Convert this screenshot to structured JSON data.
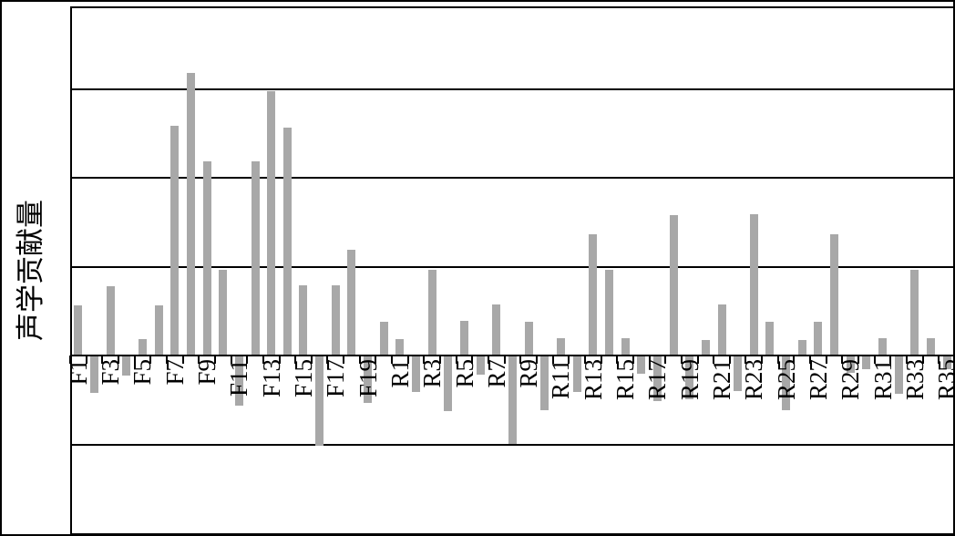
{
  "figure": {
    "background": "#ffffff",
    "outer_border_color": "#000000",
    "bar_color": "#a8a8a8",
    "axis_color": "#000000"
  },
  "chart_data": {
    "type": "bar",
    "title": "",
    "xlabel": "",
    "ylabel": "声学贡献量",
    "legend": "none",
    "grid": "horizontal",
    "ylim": [
      -2.02,
      3.93
    ],
    "gridline_values": [
      3,
      2,
      1,
      -1
    ],
    "zero_line": 0,
    "y_tick_labels": [],
    "categories": [
      "F1",
      "F2",
      "F3",
      "F4",
      "F5",
      "F6",
      "F7",
      "F8",
      "F9",
      "F10",
      "F11",
      "F12",
      "F13",
      "F14",
      "F15",
      "F16",
      "F17",
      "F18",
      "F19",
      "F20",
      "R1",
      "R2",
      "R3",
      "R4",
      "R5",
      "R6",
      "R7",
      "R8",
      "R9",
      "R10",
      "R11",
      "R12",
      "R13",
      "R14",
      "R15",
      "R16",
      "R17",
      "R18",
      "R19",
      "R20",
      "R21",
      "R22",
      "R23",
      "R24",
      "R25",
      "R26",
      "R27",
      "R28",
      "R29",
      "R30",
      "R31",
      "R32",
      "R33",
      "R34",
      "R35"
    ],
    "values": [
      0.57,
      -0.42,
      0.78,
      -0.22,
      0.19,
      0.57,
      2.59,
      3.18,
      2.19,
      0.97,
      -0.56,
      2.19,
      2.98,
      2.57,
      0.79,
      -1.01,
      0.79,
      1.19,
      -0.53,
      0.38,
      0.19,
      -0.41,
      0.97,
      -0.62,
      0.39,
      -0.21,
      0.58,
      -0.99,
      0.38,
      -0.61,
      0.2,
      -0.41,
      1.37,
      0.97,
      0.2,
      -0.2,
      -0.51,
      1.58,
      -0.49,
      0.18,
      0.58,
      -0.4,
      1.59,
      0.38,
      -0.61,
      0.18,
      0.38,
      1.37,
      -0.19,
      -0.15,
      0.2,
      -0.43,
      0.97,
      0.2,
      -0.15
    ],
    "x_tick_labels_shown": [
      "F1",
      "F3",
      "F5",
      "F7",
      "F9",
      "F11",
      "F13",
      "F15",
      "F17",
      "F19",
      "R1",
      "R3",
      "R5",
      "R7",
      "R9",
      "R11",
      "R13",
      "R15",
      "R17",
      "R19",
      "R21",
      "R23",
      "R25",
      "R27",
      "R29",
      "R31",
      "R33",
      "R35"
    ]
  }
}
